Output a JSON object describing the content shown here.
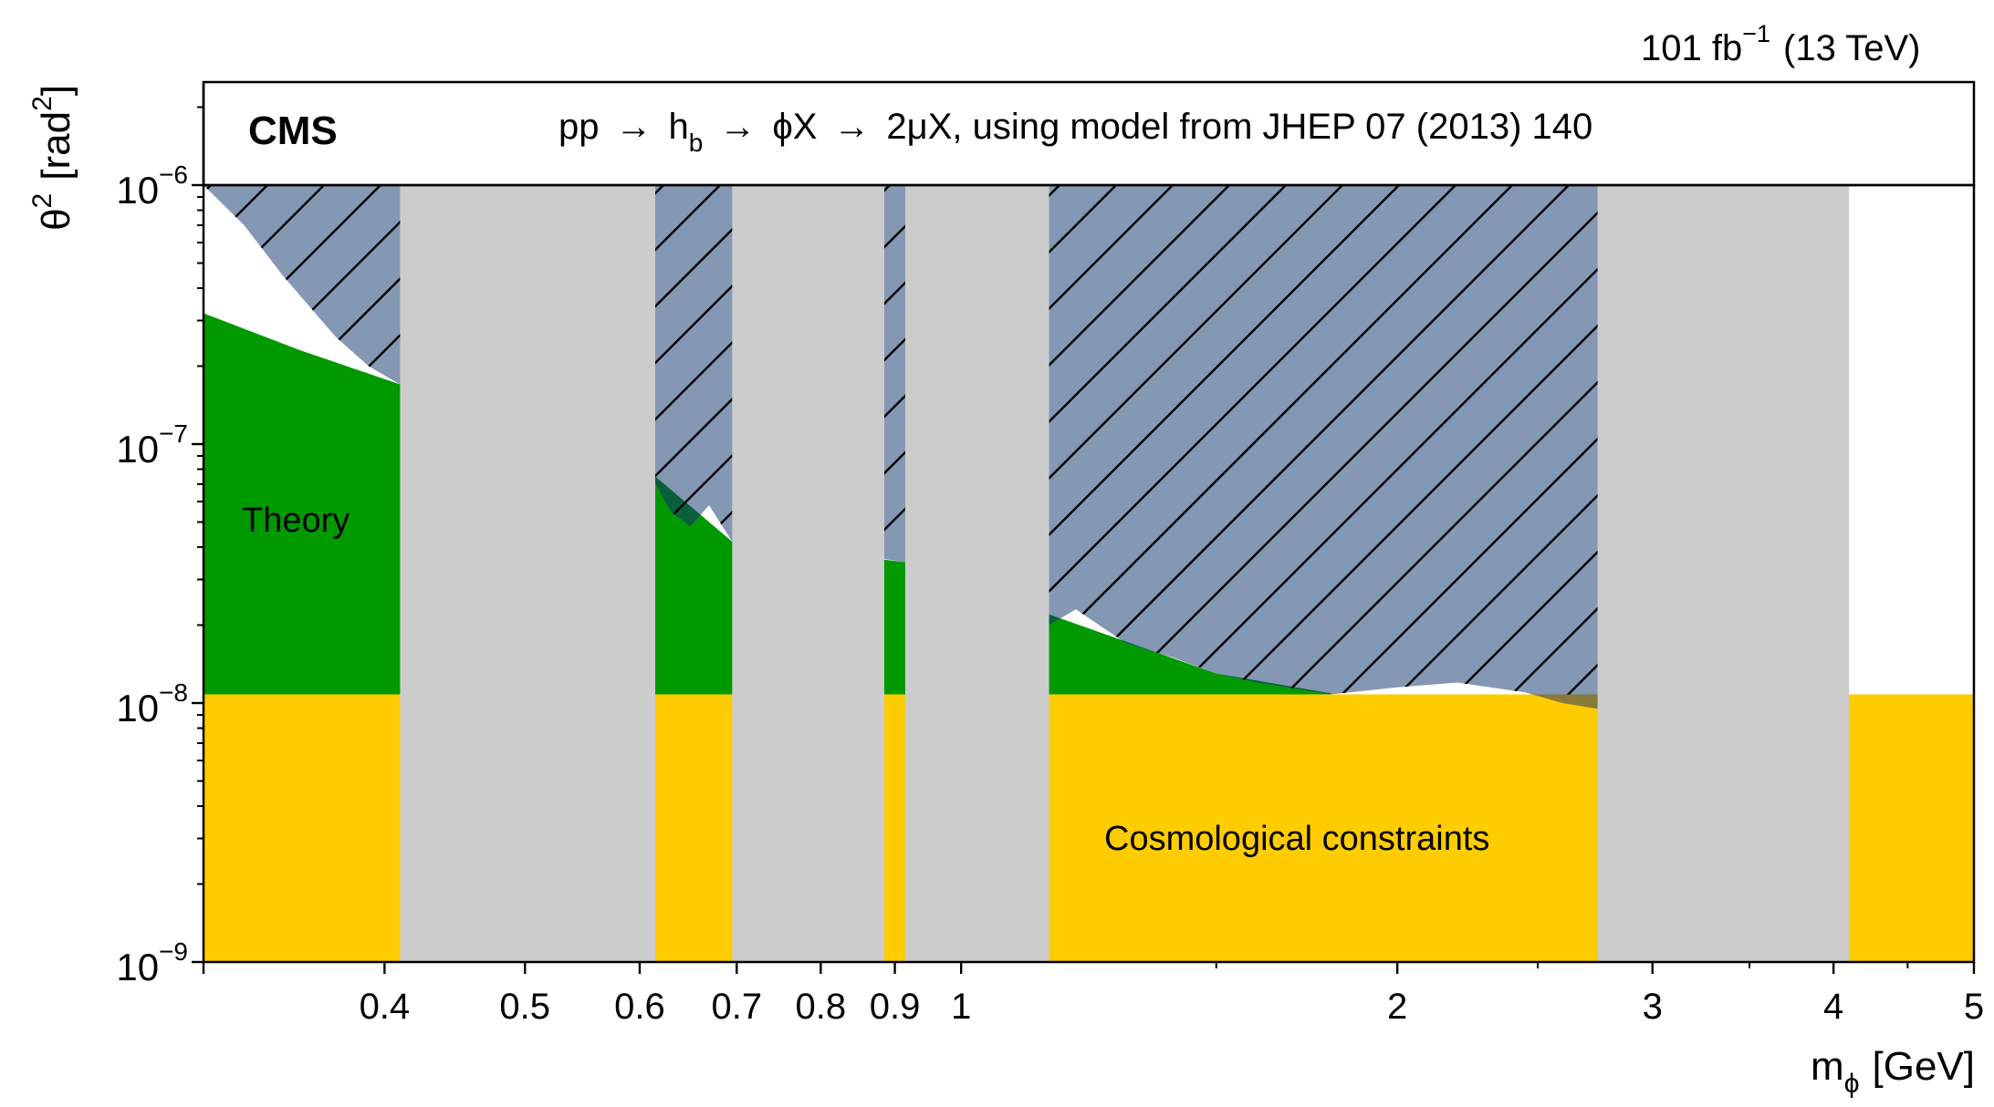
{
  "chart_data": {
    "type": "area",
    "experiment": "CMS",
    "process_label": {
      "pp": "pp",
      "h": "h",
      "h_sub": "b",
      "phiX": "ϕX",
      "final": "2μX, using model from JHEP 07 (2013) 140",
      "arrow": "→"
    },
    "luminosity": {
      "value": "101 fb",
      "exp": "−1",
      "energy": "(13 TeV)"
    },
    "xlabel": {
      "base": "m",
      "sub": "ϕ",
      "unit": "[GeV]"
    },
    "ylabel": {
      "base": "θ",
      "sup": "2",
      "unit_open": "[rad",
      "unit_sup": "2",
      "unit_close": "]"
    },
    "x_scale": "log",
    "y_scale": "log",
    "xlim": [
      0.3,
      5.0
    ],
    "ylim": [
      1e-09,
      1e-06
    ],
    "x_tick_labels": [
      {
        "value": 0.4,
        "label": "0.4"
      },
      {
        "value": 0.5,
        "label": "0.5"
      },
      {
        "value": 0.6,
        "label": "0.6"
      },
      {
        "value": 0.7,
        "label": "0.7"
      },
      {
        "value": 0.8,
        "label": "0.8"
      },
      {
        "value": 0.9,
        "label": "0.9"
      },
      {
        "value": 1.0,
        "label": "1"
      },
      {
        "value": 2.0,
        "label": "2"
      },
      {
        "value": 3.0,
        "label": "3"
      },
      {
        "value": 4.0,
        "label": "4"
      },
      {
        "value": 5.0,
        "label": "5"
      }
    ],
    "y_tick_labels": [
      {
        "value": 1e-06,
        "base": "10",
        "exp": "−6"
      },
      {
        "value": 1e-07,
        "base": "10",
        "exp": "−7"
      },
      {
        "value": 1e-08,
        "base": "10",
        "exp": "−8"
      },
      {
        "value": 1e-09,
        "base": "10",
        "exp": "−9"
      }
    ],
    "annotations": {
      "theory": "Theory",
      "cosmological": "Cosmological constraints"
    },
    "colors": {
      "excluded": "#8497b3",
      "theory": "#009900",
      "overlap": "#0b5f3c",
      "cosmological": "#ffcc00",
      "veto": "#cccccc",
      "cosmo_overlap": "#8a7a3a"
    },
    "cosmological_limit": 1.08e-08,
    "veto_regions": [
      [
        0.41,
        0.615
      ],
      [
        0.695,
        0.885
      ],
      [
        0.915,
        1.15
      ],
      [
        2.75,
        4.1
      ]
    ],
    "theory_band": [
      [
        0.3,
        3.2e-07
      ],
      [
        0.35,
        2.3e-07
      ],
      [
        0.41,
        1.7e-07
      ],
      [
        0.615,
        7.5e-08
      ],
      [
        0.695,
        4.2e-08
      ],
      [
        0.915,
        3.5e-08
      ],
      [
        1.15,
        2.2e-08
      ],
      [
        1.5,
        1.3e-08
      ],
      [
        1.8,
        1.09e-08
      ]
    ],
    "excluded_lower_boundary": [
      [
        0.3,
        1e-06
      ],
      [
        0.32,
        7e-07
      ],
      [
        0.34,
        4.5e-07
      ],
      [
        0.37,
        2.6e-07
      ],
      [
        0.39,
        2e-07
      ],
      [
        0.41,
        1.7e-07
      ],
      [
        0.615,
        7e-08
      ],
      [
        0.63,
        5.5e-08
      ],
      [
        0.65,
        4.8e-08
      ],
      [
        0.67,
        5.8e-08
      ],
      [
        0.695,
        4.2e-08
      ],
      [
        0.885,
        3.6e-08
      ],
      [
        0.915,
        3.5e-08
      ],
      [
        1.15,
        2e-08
      ],
      [
        1.2,
        2.3e-08
      ],
      [
        1.3,
        1.7e-08
      ],
      [
        1.4,
        1.5e-08
      ],
      [
        1.5,
        1.3e-08
      ],
      [
        1.6,
        1.2e-08
      ],
      [
        1.8,
        1.08e-08
      ],
      [
        2.0,
        1.15e-08
      ],
      [
        2.2,
        1.2e-08
      ],
      [
        2.45,
        1.1e-08
      ],
      [
        2.6,
        1e-08
      ],
      [
        2.75,
        9.5e-09
      ]
    ]
  }
}
